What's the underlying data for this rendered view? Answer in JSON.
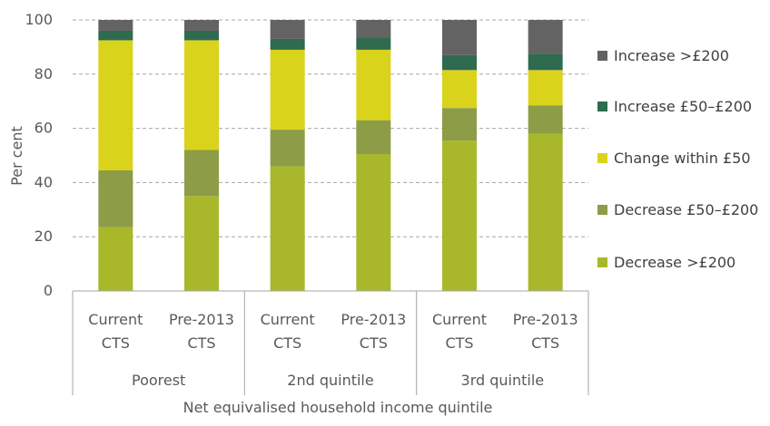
{
  "chart_data": {
    "type": "bar",
    "stacked": true,
    "xlabel": "Net equivalised household income quintile",
    "ylabel": "Per cent",
    "ylim": [
      0,
      100
    ],
    "yticks": [
      "0",
      "20",
      "40",
      "60",
      "80",
      "100"
    ],
    "grid": true,
    "legend_position": "right",
    "groups": [
      {
        "label": "Poorest",
        "bars": [
          "Current CTS",
          "Pre-2013 CTS"
        ]
      },
      {
        "label": "2nd quintile",
        "bars": [
          "Current CTS",
          "Pre-2013 CTS"
        ]
      },
      {
        "label": "3rd quintile",
        "bars": [
          "Current CTS",
          "Pre-2013 CTS"
        ]
      }
    ],
    "categories": [
      {
        "line1": "Current",
        "line2": "CTS"
      },
      {
        "line1": "Pre-2013",
        "line2": "CTS"
      },
      {
        "line1": "Current",
        "line2": "CTS"
      },
      {
        "line1": "Pre-2013",
        "line2": "CTS"
      },
      {
        "line1": "Current",
        "line2": "CTS"
      },
      {
        "line1": "Pre-2013",
        "line2": "CTS"
      }
    ],
    "series": [
      {
        "name": "Decrease >£200",
        "color": "#a9b82b",
        "values": [
          23.5,
          35,
          46,
          50.5,
          55.5,
          58
        ]
      },
      {
        "name": "Decrease £50–£200",
        "color": "#8d9c46",
        "values": [
          21,
          17,
          13.5,
          12.5,
          12,
          10.5
        ]
      },
      {
        "name": "Change within £50",
        "color": "#d9d31c",
        "values": [
          48,
          40.5,
          29.5,
          26,
          14,
          13
        ]
      },
      {
        "name": "Increase £50–£200",
        "color": "#2e6b4f",
        "values": [
          3.5,
          3.5,
          4,
          4.5,
          5.5,
          6
        ]
      },
      {
        "name": "Increase >£200",
        "color": "#636363",
        "values": [
          4,
          4,
          7,
          6.5,
          13,
          12.5
        ]
      }
    ]
  }
}
